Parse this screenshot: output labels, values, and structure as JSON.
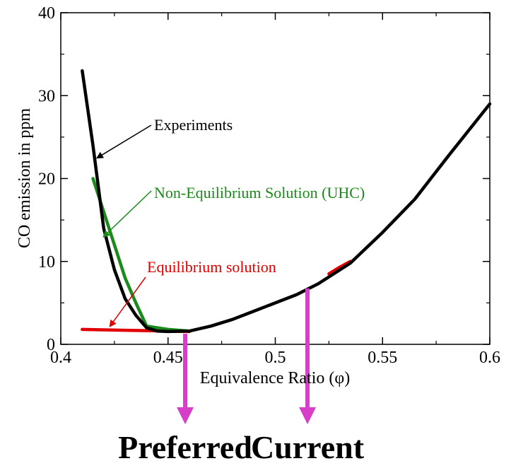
{
  "chart_data": {
    "type": "line",
    "title": "",
    "xlabel": "Equivalence Ratio (φ)",
    "ylabel": "CO emission in ppm",
    "xlim": [
      0.4,
      0.6
    ],
    "ylim": [
      0,
      40
    ],
    "xticks": [
      0.4,
      0.45,
      0.5,
      0.55,
      0.6
    ],
    "xtick_labels": [
      "0.4",
      "0.45",
      "0.5",
      "0.55",
      "0.6"
    ],
    "yticks": [
      0,
      10,
      20,
      30,
      40
    ],
    "ytick_labels": [
      "0",
      "10",
      "20",
      "30",
      "40"
    ],
    "grid": false,
    "series": [
      {
        "color": "#e00000",
        "x": [
          0.41,
          0.42,
          0.43,
          0.44,
          0.45,
          0.46
        ],
        "y": [
          1.8,
          1.75,
          1.7,
          1.65,
          1.6,
          1.55
        ]
      },
      {
        "color": "#e00000",
        "x": [
          0.525,
          0.53,
          0.535
        ],
        "y": [
          8.5,
          9.3,
          10.0
        ]
      },
      {
        "color": "#1a8a1a",
        "x": [
          0.415,
          0.42,
          0.425,
          0.43,
          0.435,
          0.44,
          0.45,
          0.46
        ],
        "y": [
          20.0,
          16.0,
          12.0,
          8.0,
          5.0,
          2.2,
          1.8,
          1.6
        ]
      },
      {
        "color": "#000000",
        "x": [
          0.41,
          0.415,
          0.42,
          0.425,
          0.43,
          0.435,
          0.44,
          0.445,
          0.45,
          0.46,
          0.47,
          0.48,
          0.49,
          0.5,
          0.51,
          0.52,
          0.535,
          0.55,
          0.565,
          0.58,
          0.6
        ],
        "y": [
          33,
          24,
          14,
          9,
          5.5,
          3.5,
          2.0,
          1.6,
          1.55,
          1.6,
          2.2,
          3.0,
          4.0,
          5.0,
          6.0,
          7.3,
          9.8,
          13.5,
          17.5,
          22.5,
          29
        ]
      }
    ],
    "annotations": [
      {
        "text": "Experiments",
        "color": "#000000",
        "points_to": [
          0.417,
          22.5
        ]
      },
      {
        "text": "Non-Equilibrium Solution (UHC)",
        "color": "#1a8a1a",
        "points_to": [
          0.42,
          13.0
        ]
      },
      {
        "text": "Equilibrium solution",
        "color": "#e00000",
        "points_to": [
          0.423,
          2.2
        ]
      }
    ],
    "markers": [
      {
        "label": "Preferred",
        "x": 0.458,
        "color": "#d63fc7"
      },
      {
        "label": "Current",
        "x": 0.515,
        "color": "#d63fc7"
      }
    ]
  }
}
